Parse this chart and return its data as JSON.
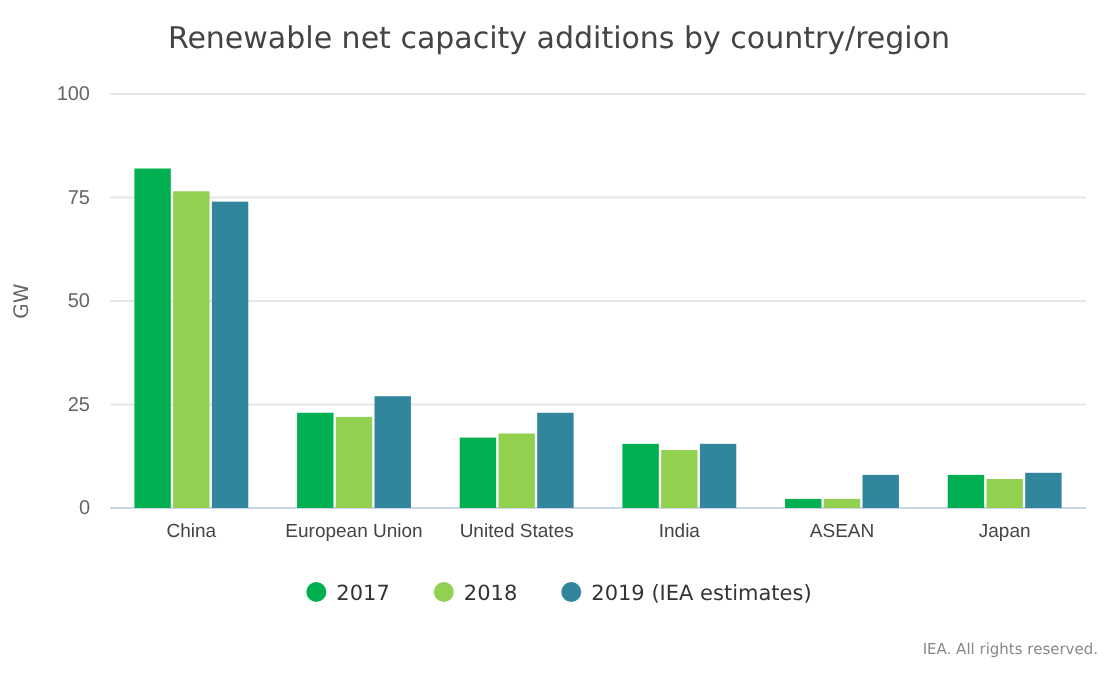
{
  "chart_data": {
    "type": "bar",
    "title": "Renewable net capacity additions by country/region",
    "ylabel": "GW",
    "categories": [
      "China",
      "European Union",
      "United States",
      "India",
      "ASEAN",
      "Japan"
    ],
    "series": [
      {
        "name": "2017",
        "color": "#00b050",
        "values": [
          82,
          23,
          17,
          15.5,
          2.2,
          8
        ]
      },
      {
        "name": "2018",
        "color": "#92d050",
        "values": [
          76.5,
          22,
          18,
          14,
          2.2,
          7
        ]
      },
      {
        "name": "2019 (IEA estimates)",
        "color": "#31859c",
        "values": [
          74,
          27,
          23,
          15.5,
          8,
          8.5
        ]
      }
    ],
    "ylim": [
      0,
      100
    ],
    "yticks": [
      0,
      25,
      50,
      75,
      100
    ],
    "grid": "y",
    "legend": "bottom",
    "annotations": [
      "IEA. All rights reserved."
    ]
  }
}
